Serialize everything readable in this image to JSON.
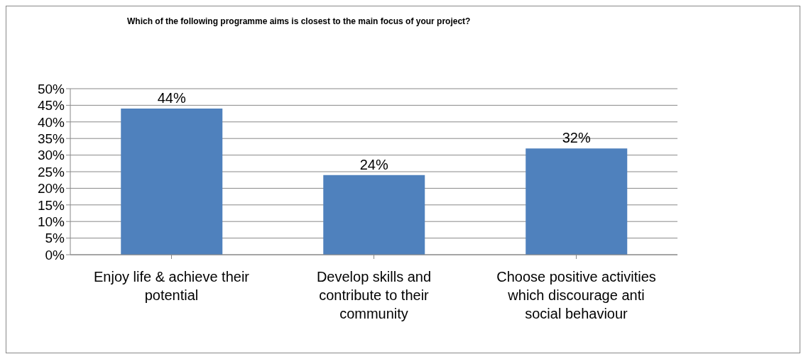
{
  "chart_data": {
    "type": "bar",
    "title": "Which of the following  programme aims is closest to the main focus of your project?",
    "categories": [
      "Enjoy life & achieve their potential",
      "Develop skills and contribute to their community",
      "Choose positive activities which discourage anti social behaviour"
    ],
    "values": [
      44,
      24,
      32
    ],
    "color": "#4f81bd",
    "value_labels": [
      "44%",
      "24%",
      "32%"
    ],
    "ylim": [
      0,
      50
    ],
    "yticks": [
      {
        "value": 0,
        "label": "0%"
      },
      {
        "value": 5,
        "label": "5%"
      },
      {
        "value": 10,
        "label": "10%"
      },
      {
        "value": 15,
        "label": "15%"
      },
      {
        "value": 20,
        "label": "20%"
      },
      {
        "value": 25,
        "label": "25%"
      },
      {
        "value": 30,
        "label": "30%"
      },
      {
        "value": 35,
        "label": "35%"
      },
      {
        "value": 40,
        "label": "40%"
      },
      {
        "value": 45,
        "label": "45%"
      },
      {
        "value": 50,
        "label": "50%"
      }
    ],
    "grid": "y",
    "legend": false
  }
}
